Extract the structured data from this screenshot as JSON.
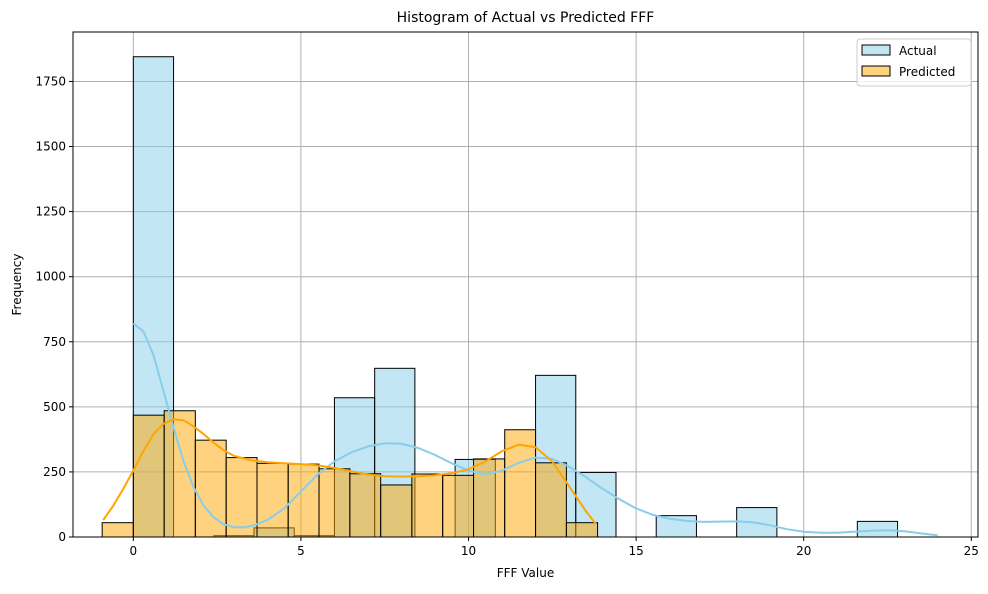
{
  "chart_data": {
    "type": "histogram",
    "title": "Histogram of Actual vs Predicted FFF",
    "xlabel": "FFF Value",
    "ylabel": "Frequency",
    "xlim": [
      -1.8,
      25.2
    ],
    "ylim": [
      0,
      1940
    ],
    "xticks": [
      0,
      5,
      10,
      15,
      20,
      25
    ],
    "yticks": [
      0,
      250,
      500,
      750,
      1000,
      1250,
      1500,
      1750
    ],
    "grid": true,
    "legend": "top-right",
    "series": [
      {
        "name": "Actual",
        "color": "#87CEEB",
        "bins": [
          {
            "x0": 0.0,
            "x1": 1.2,
            "count": 1845
          },
          {
            "x0": 1.2,
            "x1": 2.4,
            "count": 0
          },
          {
            "x0": 2.4,
            "x1": 3.6,
            "count": 5
          },
          {
            "x0": 3.6,
            "x1": 4.8,
            "count": 35
          },
          {
            "x0": 4.8,
            "x1": 6.0,
            "count": 5
          },
          {
            "x0": 6.0,
            "x1": 7.2,
            "count": 535
          },
          {
            "x0": 7.2,
            "x1": 8.4,
            "count": 648
          },
          {
            "x0": 8.4,
            "x1": 9.6,
            "count": 0
          },
          {
            "x0": 9.6,
            "x1": 10.8,
            "count": 298
          },
          {
            "x0": 10.8,
            "x1": 12.0,
            "count": 0
          },
          {
            "x0": 12.0,
            "x1": 13.2,
            "count": 621
          },
          {
            "x0": 13.2,
            "x1": 14.4,
            "count": 248
          },
          {
            "x0": 14.4,
            "x1": 15.6,
            "count": 0
          },
          {
            "x0": 15.6,
            "x1": 16.8,
            "count": 82
          },
          {
            "x0": 16.8,
            "x1": 18.0,
            "count": 0
          },
          {
            "x0": 18.0,
            "x1": 19.2,
            "count": 113
          },
          {
            "x0": 19.2,
            "x1": 20.4,
            "count": 0
          },
          {
            "x0": 20.4,
            "x1": 21.6,
            "count": 0
          },
          {
            "x0": 21.6,
            "x1": 22.8,
            "count": 60
          },
          {
            "x0": 22.8,
            "x1": 24.0,
            "count": 0
          }
        ],
        "kde": [
          [
            0,
            820
          ],
          [
            0.3,
            790
          ],
          [
            0.6,
            700
          ],
          [
            0.9,
            560
          ],
          [
            1.2,
            420
          ],
          [
            1.5,
            290
          ],
          [
            1.8,
            190
          ],
          [
            2.1,
            120
          ],
          [
            2.4,
            75
          ],
          [
            2.7,
            48
          ],
          [
            3.0,
            38
          ],
          [
            3.3,
            37
          ],
          [
            3.6,
            45
          ],
          [
            4.0,
            65
          ],
          [
            4.5,
            110
          ],
          [
            5.0,
            175
          ],
          [
            5.5,
            240
          ],
          [
            6.0,
            290
          ],
          [
            6.5,
            325
          ],
          [
            7.0,
            348
          ],
          [
            7.5,
            360
          ],
          [
            8.0,
            358
          ],
          [
            8.5,
            342
          ],
          [
            9.0,
            315
          ],
          [
            9.5,
            283
          ],
          [
            10.0,
            255
          ],
          [
            10.5,
            240
          ],
          [
            11.0,
            255
          ],
          [
            11.5,
            285
          ],
          [
            12.0,
            305
          ],
          [
            12.5,
            300
          ],
          [
            13.0,
            270
          ],
          [
            13.5,
            230
          ],
          [
            14.0,
            185
          ],
          [
            14.5,
            145
          ],
          [
            15.0,
            110
          ],
          [
            15.5,
            85
          ],
          [
            16.0,
            70
          ],
          [
            16.5,
            62
          ],
          [
            17.0,
            58
          ],
          [
            17.5,
            59
          ],
          [
            18.0,
            60
          ],
          [
            18.5,
            56
          ],
          [
            19.0,
            45
          ],
          [
            19.5,
            30
          ],
          [
            20.0,
            20
          ],
          [
            20.5,
            16
          ],
          [
            21.0,
            16
          ],
          [
            21.5,
            20
          ],
          [
            22.0,
            24
          ],
          [
            22.5,
            26
          ],
          [
            23.0,
            22
          ],
          [
            23.5,
            14
          ],
          [
            24.0,
            6
          ]
        ]
      },
      {
        "name": "Predicted",
        "color": "#FFA500",
        "bins": [
          {
            "x0": -0.93,
            "x1": 0.0,
            "count": 55
          },
          {
            "x0": 0.0,
            "x1": 0.92,
            "count": 468
          },
          {
            "x0": 0.92,
            "x1": 1.85,
            "count": 485
          },
          {
            "x0": 1.85,
            "x1": 2.77,
            "count": 372
          },
          {
            "x0": 2.77,
            "x1": 3.69,
            "count": 305
          },
          {
            "x0": 3.69,
            "x1": 4.62,
            "count": 283
          },
          {
            "x0": 4.62,
            "x1": 5.54,
            "count": 280
          },
          {
            "x0": 5.54,
            "x1": 6.46,
            "count": 262
          },
          {
            "x0": 6.46,
            "x1": 7.38,
            "count": 243
          },
          {
            "x0": 7.38,
            "x1": 8.31,
            "count": 200
          },
          {
            "x0": 8.31,
            "x1": 9.23,
            "count": 242
          },
          {
            "x0": 9.23,
            "x1": 10.15,
            "count": 237
          },
          {
            "x0": 10.15,
            "x1": 11.08,
            "count": 300
          },
          {
            "x0": 11.08,
            "x1": 12.0,
            "count": 412
          },
          {
            "x0": 12.0,
            "x1": 12.92,
            "count": 285
          },
          {
            "x0": 12.92,
            "x1": 13.85,
            "count": 55
          }
        ],
        "kde": [
          [
            -0.9,
            65
          ],
          [
            -0.6,
            120
          ],
          [
            -0.3,
            185
          ],
          [
            0.0,
            255
          ],
          [
            0.3,
            330
          ],
          [
            0.6,
            395
          ],
          [
            0.9,
            435
          ],
          [
            1.2,
            452
          ],
          [
            1.5,
            448
          ],
          [
            1.8,
            425
          ],
          [
            2.1,
            395
          ],
          [
            2.4,
            362
          ],
          [
            2.7,
            333
          ],
          [
            3.0,
            312
          ],
          [
            3.5,
            295
          ],
          [
            4.0,
            287
          ],
          [
            4.5,
            283
          ],
          [
            5.0,
            280
          ],
          [
            5.5,
            275
          ],
          [
            6.0,
            265
          ],
          [
            6.5,
            252
          ],
          [
            7.0,
            240
          ],
          [
            7.5,
            233
          ],
          [
            8.0,
            232
          ],
          [
            8.5,
            233
          ],
          [
            9.0,
            237
          ],
          [
            9.5,
            245
          ],
          [
            10.0,
            260
          ],
          [
            10.5,
            290
          ],
          [
            11.0,
            330
          ],
          [
            11.5,
            355
          ],
          [
            12.0,
            345
          ],
          [
            12.5,
            290
          ],
          [
            13.0,
            195
          ],
          [
            13.5,
            100
          ],
          [
            13.8,
            50
          ]
        ]
      }
    ]
  }
}
